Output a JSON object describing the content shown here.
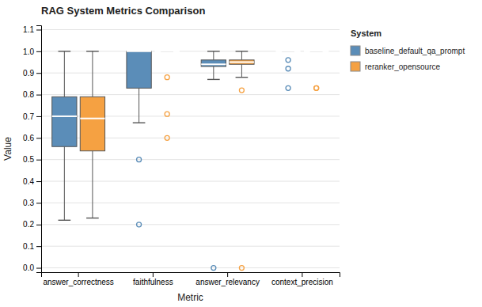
{
  "chart_data": {
    "type": "box",
    "title": "RAG System Metrics Comparison",
    "x_label": "Metric",
    "y_label": "Value",
    "categories": [
      "answer_correctness",
      "faithfulness",
      "answer_relevancy",
      "context_precision"
    ],
    "series": [
      {
        "name": "baseline_default_qa_prompt",
        "color": "#5B8DB8",
        "values": [
          {
            "med": 0.7,
            "q1": 0.56,
            "q3": 0.79,
            "whislo": 0.22,
            "whishi": 1.0,
            "fliers": []
          },
          {
            "med": 1.0,
            "q1": 0.83,
            "q3": 1.0,
            "whislo": 0.67,
            "whishi": 1.0,
            "fliers": [
              0.5,
              0.2
            ]
          },
          {
            "med": 0.94,
            "q1": 0.93,
            "q3": 0.96,
            "whislo": 0.87,
            "whishi": 1.0,
            "fliers": [
              0.0
            ]
          },
          {
            "med": 1.0,
            "q1": 1.0,
            "q3": 1.0,
            "whislo": 1.0,
            "whishi": 1.0,
            "fliers": [
              0.96,
              0.92,
              0.83
            ]
          }
        ]
      },
      {
        "name": "reranker_opensource",
        "color": "#F5A142",
        "values": [
          {
            "med": 0.69,
            "q1": 0.54,
            "q3": 0.79,
            "whislo": 0.23,
            "whishi": 1.0,
            "fliers": []
          },
          {
            "med": 1.0,
            "q1": 1.0,
            "q3": 1.0,
            "whislo": 1.0,
            "whishi": 1.0,
            "fliers": [
              0.88,
              0.71,
              0.6
            ]
          },
          {
            "med": 0.95,
            "q1": 0.94,
            "q3": 0.96,
            "whislo": 0.88,
            "whishi": 1.0,
            "fliers": [
              0.82,
              0.0
            ]
          },
          {
            "med": 1.0,
            "q1": 1.0,
            "q3": 1.0,
            "whislo": 1.0,
            "whishi": 1.0,
            "fliers": [
              0.83,
              0.83
            ]
          }
        ]
      }
    ],
    "ylim": [
      -0.02,
      1.12
    ],
    "yticks": [
      {
        "value": 0.0,
        "label": "0.0"
      },
      0.1,
      0.2,
      0.3,
      0.4,
      0.5,
      0.6,
      0.7,
      0.8,
      0.9,
      {
        "value": 1.0,
        "label": "1.0"
      },
      1.1
    ],
    "grid": true,
    "legend": "right",
    "legend_title": "System"
  }
}
